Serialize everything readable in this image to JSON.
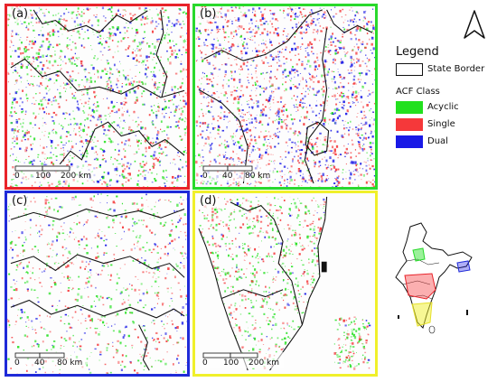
{
  "panels": [
    {
      "label": "(a)",
      "border": "#e8232a",
      "scale": [
        "0",
        "100",
        "200 km"
      ]
    },
    {
      "label": "(b)",
      "border": "#29d92c",
      "scale": [
        "0",
        "40",
        "80 km"
      ]
    },
    {
      "label": "(c)",
      "border": "#1f2ad8",
      "scale": [
        "0",
        "40",
        "80 km"
      ]
    },
    {
      "label": "(d)",
      "border": "#f0f02a",
      "scale": [
        "0",
        "100",
        "200 km"
      ]
    }
  ],
  "legend": {
    "title": "Legend",
    "state_border_label": "State Border",
    "acf_title": "ACF Class",
    "classes": [
      {
        "label": "Acyclic",
        "color": "#22e01e"
      },
      {
        "label": "Single",
        "color": "#f5383a"
      },
      {
        "label": "Dual",
        "color": "#1a1ae6"
      }
    ]
  },
  "north_arrow_icon": "north-arrow-icon",
  "inset_map": "india-locator-map"
}
